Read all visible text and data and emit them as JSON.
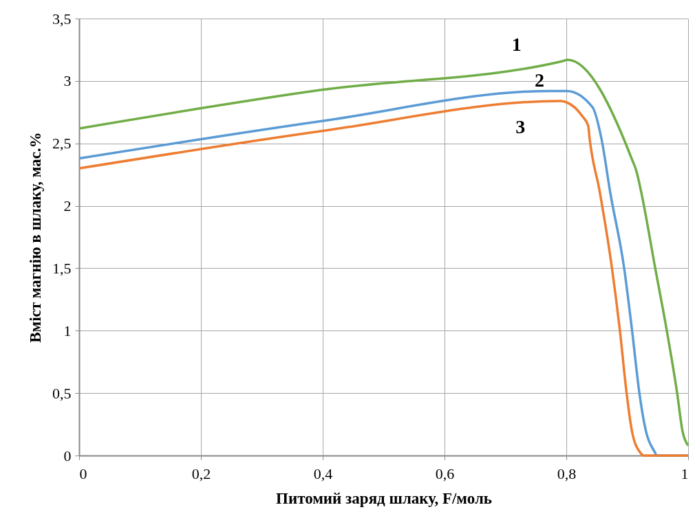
{
  "chart_data": {
    "type": "line",
    "xlabel": "Питомий заряд шлаку, F/моль",
    "ylabel": "Вміст магнію в шлаку, мас.%",
    "xlim": [
      0,
      1
    ],
    "ylim": [
      0,
      3.5
    ],
    "xticks": [
      {
        "value": 0,
        "label": "0"
      },
      {
        "value": 0.2,
        "label": "0,2"
      },
      {
        "value": 0.4,
        "label": "0,4"
      },
      {
        "value": 0.6,
        "label": "0,6"
      },
      {
        "value": 0.8,
        "label": "0,8"
      },
      {
        "value": 1,
        "label": "1"
      }
    ],
    "yticks": [
      {
        "value": 0,
        "label": "0"
      },
      {
        "value": 0.5,
        "label": "0,5"
      },
      {
        "value": 1,
        "label": "1"
      },
      {
        "value": 1.5,
        "label": "1,5"
      },
      {
        "value": 2,
        "label": "2"
      },
      {
        "value": 2.5,
        "label": "2,5"
      },
      {
        "value": 3,
        "label": "3"
      },
      {
        "value": 3.5,
        "label": "3,5"
      }
    ],
    "grid": true,
    "line_style": "solid",
    "marker": "none",
    "series": [
      {
        "name": "1",
        "color": "#70ad47",
        "x": [
          0,
          0.4,
          0.795,
          0.802,
          0.908,
          0.915,
          0.923,
          0.946,
          0.965,
          0.982,
          0.991,
          1.0
        ],
        "values": [
          2.62,
          2.93,
          3.16,
          3.17,
          2.37,
          2.28,
          2.11,
          1.5,
          1.0,
          0.5,
          0.19,
          0.08
        ]
      },
      {
        "name": "2",
        "color": "#5b9bd5",
        "x": [
          0,
          0.4,
          0.773,
          0.801,
          0.843,
          0.858,
          0.872,
          0.895,
          0.908,
          0.92,
          0.931,
          0.946,
          0.948,
          1.0
        ],
        "values": [
          2.38,
          2.68,
          2.92,
          2.92,
          2.79,
          2.53,
          2.11,
          1.5,
          1.0,
          0.5,
          0.19,
          0.02,
          0,
          0
        ]
      },
      {
        "name": "3",
        "color": "#ed7d31",
        "x": [
          0,
          0.4,
          0.79,
          0.8,
          0.826,
          0.836,
          0.838,
          0.855,
          0.875,
          0.888,
          0.899,
          0.908,
          0.922,
          0.927,
          1.0
        ],
        "values": [
          2.3,
          2.6,
          2.84,
          2.83,
          2.72,
          2.64,
          2.55,
          2.11,
          1.5,
          1.0,
          0.5,
          0.19,
          0.02,
          0,
          0
        ]
      }
    ]
  }
}
